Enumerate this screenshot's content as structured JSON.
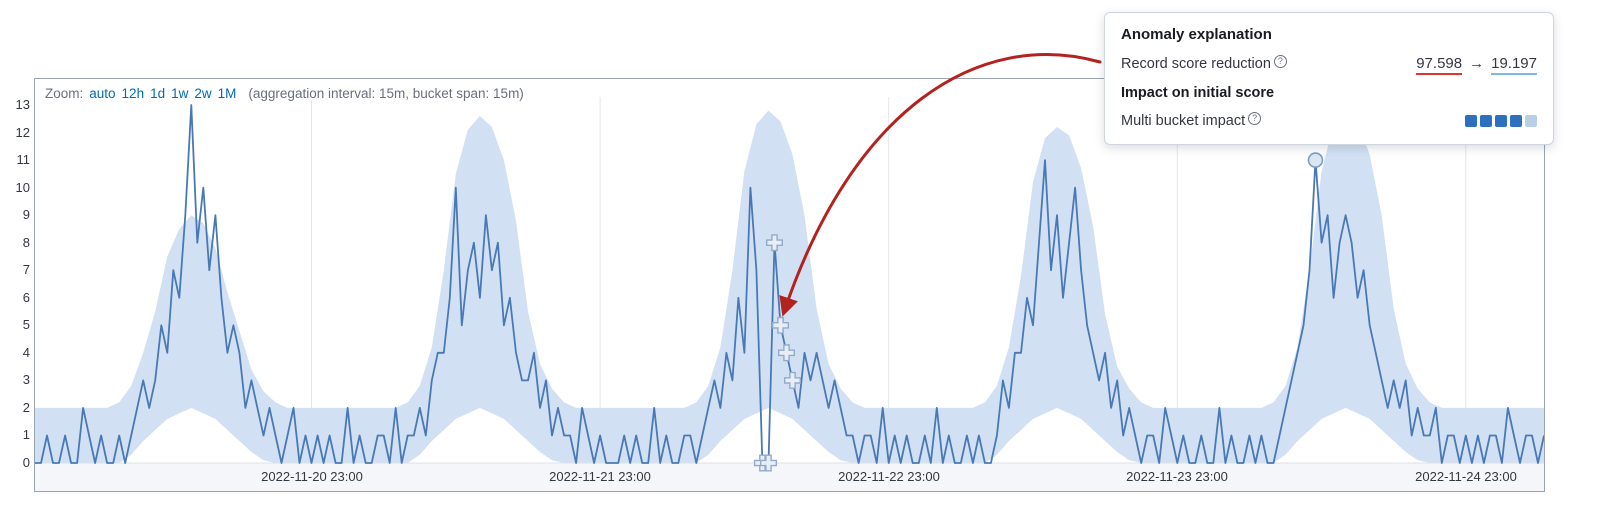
{
  "header": {
    "zoom_label": "Zoom:",
    "zoom_options": [
      "auto",
      "12h",
      "1d",
      "1w",
      "2w",
      "1M"
    ],
    "aggregation_note": "(aggregation interval: 15m, bucket span: 15m)"
  },
  "tooltip": {
    "title": "Anomaly explanation",
    "record_score_label": "Record score reduction",
    "record_score_from": "97.598",
    "record_score_arrow": "→",
    "record_score_to": "19.197",
    "help_glyph": "?",
    "impact_title": "Impact on initial score",
    "multi_bucket_label": "Multi bucket impact",
    "multi_bucket_impact_level": 4,
    "multi_bucket_squares_total": 5
  },
  "colors": {
    "link": "#006bb4",
    "muted_text": "#69707d",
    "panel_border": "#9aa5b3",
    "grid": "#e2e6ec",
    "band": "#d2e0f3",
    "line": "#4879b6",
    "marker_fill": "#e8eef7",
    "marker_stroke": "#92aaca",
    "circle_fill": "#dbe6f5",
    "circle_stroke": "#7e9cc0",
    "annotation_arrow": "#b2221f",
    "underline_from": "#e0352b",
    "underline_to": "#7cb9e8",
    "square_filled": "#2e6fc0",
    "square_light": "#b9cfe8"
  },
  "chart_data": {
    "type": "line",
    "title": "",
    "xlabel": "",
    "ylabel": "",
    "x_unit": "hours since 2022-11-20 00:00",
    "x_range": [
      0,
      125.5
    ],
    "ylim": [
      0,
      13
    ],
    "y_ticks": [
      0,
      1,
      2,
      3,
      4,
      5,
      6,
      7,
      8,
      9,
      10,
      11,
      12,
      13
    ],
    "x_ticks": [
      {
        "t": 23,
        "label": "2022-11-20 23:00"
      },
      {
        "t": 47,
        "label": "2022-11-21 23:00"
      },
      {
        "t": 71,
        "label": "2022-11-22 23:00"
      },
      {
        "t": 95,
        "label": "2022-11-23 23:00"
      },
      {
        "t": 119,
        "label": "2022-11-24 23:00"
      }
    ],
    "legend": "off",
    "grid": "vertical-only",
    "series": [
      {
        "name": "actual",
        "start": 0,
        "step": 0.5,
        "values": [
          0,
          0,
          1,
          0,
          0,
          1,
          0,
          0,
          2,
          1,
          0,
          1,
          0,
          0,
          1,
          0,
          1,
          2,
          3,
          2,
          3,
          5,
          4,
          7,
          6,
          9,
          13,
          8,
          10,
          7,
          9,
          6,
          4,
          5,
          4,
          2,
          3,
          2,
          1,
          2,
          1,
          0,
          1,
          2,
          0,
          1,
          0,
          1,
          0,
          1,
          0,
          0,
          2,
          0,
          1,
          0,
          0,
          1,
          1,
          0,
          2,
          0,
          1,
          1,
          2,
          1,
          3,
          4,
          4,
          6,
          10,
          5,
          7,
          8,
          6,
          9,
          7,
          8,
          5,
          6,
          4,
          3,
          3,
          4,
          2,
          3,
          1,
          2,
          1,
          1,
          0,
          2,
          1,
          0,
          1,
          0,
          0,
          0,
          1,
          0,
          1,
          0,
          0,
          2,
          0,
          1,
          0,
          0,
          1,
          1,
          0,
          1,
          2,
          3,
          2,
          4,
          3,
          6,
          4,
          10,
          7,
          0,
          0,
          8,
          5,
          4,
          3,
          2,
          4,
          3,
          4,
          3,
          2,
          3,
          2,
          1,
          1,
          0,
          1,
          1,
          0,
          2,
          0,
          1,
          0,
          1,
          0,
          0,
          1,
          0,
          2,
          0,
          1,
          0,
          0,
          1,
          0,
          1,
          0,
          0,
          1,
          3,
          2,
          4,
          4,
          6,
          5,
          8,
          11,
          7,
          9,
          6,
          8,
          10,
          7,
          5,
          4,
          3,
          4,
          2,
          3,
          1,
          2,
          1,
          0,
          1,
          1,
          0,
          2,
          1,
          0,
          1,
          0,
          0,
          1,
          0,
          0,
          2,
          0,
          1,
          0,
          0,
          1,
          0,
          1,
          0,
          0,
          1,
          2,
          3,
          4,
          5,
          7,
          11,
          8,
          9,
          6,
          8,
          9,
          8,
          6,
          7,
          5,
          4,
          3,
          2,
          3,
          2,
          3,
          1,
          2,
          1,
          1,
          2,
          0,
          1,
          1,
          0,
          1,
          0,
          1,
          0,
          1,
          1,
          0,
          2,
          1,
          0,
          1,
          1,
          0,
          1
        ]
      },
      {
        "name": "model_upper_bound",
        "start": 0,
        "step": 1,
        "values": [
          2,
          2,
          2,
          2,
          2,
          2,
          2,
          2.2,
          2.8,
          4,
          5.5,
          7.5,
          8.5,
          9,
          8.7,
          7.8,
          6.2,
          4.8,
          3.4,
          2.6,
          2.2,
          2,
          2,
          2,
          2,
          2,
          2,
          2,
          2,
          2,
          2,
          2.2,
          2.8,
          4.2,
          7,
          10.5,
          12.1,
          12.6,
          12.2,
          11,
          8.8,
          5.5,
          3.6,
          2.7,
          2.2,
          2,
          2,
          2,
          2,
          2,
          2,
          2,
          2,
          2,
          2,
          2.2,
          2.8,
          4.2,
          7,
          10.6,
          12.3,
          12.8,
          12.4,
          11.2,
          9,
          5.6,
          3.6,
          2.7,
          2.2,
          2,
          2,
          2,
          2,
          2,
          2,
          2,
          2,
          2,
          2,
          2.2,
          2.8,
          4.2,
          6.8,
          10.2,
          11.8,
          12.2,
          11.9,
          10.7,
          8.6,
          5.4,
          3.5,
          2.7,
          2.2,
          2,
          2,
          2,
          2,
          2,
          2,
          2,
          2,
          2,
          2,
          2.2,
          2.8,
          4.2,
          7,
          10.6,
          12.3,
          12.8,
          12.4,
          11.2,
          9,
          5.6,
          3.6,
          2.7,
          2.2,
          2,
          2,
          2,
          2,
          2,
          2,
          2,
          2,
          2
        ]
      },
      {
        "name": "model_lower_bound",
        "start": 0,
        "step": 1,
        "values": [
          0,
          0,
          0,
          0,
          0,
          0,
          0,
          0,
          0.3,
          0.8,
          1.2,
          1.6,
          1.8,
          2,
          1.8,
          1.6,
          1.2,
          0.8,
          0.4,
          0.1,
          0,
          0,
          0,
          0,
          0,
          0,
          0,
          0,
          0,
          0,
          0,
          0,
          0.3,
          0.8,
          1.2,
          1.6,
          1.8,
          2,
          1.8,
          1.6,
          1.2,
          0.8,
          0.4,
          0.1,
          0,
          0,
          0,
          0,
          0,
          0,
          0,
          0,
          0,
          0,
          0,
          0,
          0.3,
          0.8,
          1.2,
          1.6,
          1.8,
          2,
          1.8,
          1.6,
          1.2,
          0.8,
          0.4,
          0.1,
          0,
          0,
          0,
          0,
          0,
          0,
          0,
          0,
          0,
          0,
          0,
          0,
          0.3,
          0.8,
          1.2,
          1.6,
          1.8,
          2,
          1.8,
          1.6,
          1.2,
          0.8,
          0.4,
          0.1,
          0,
          0,
          0,
          0,
          0,
          0,
          0,
          0,
          0,
          0,
          0,
          0,
          0.3,
          0.8,
          1.2,
          1.6,
          1.8,
          2,
          1.8,
          1.6,
          1.2,
          0.8,
          0.4,
          0.1,
          0,
          0,
          0,
          0,
          0,
          0,
          0,
          0,
          0,
          0
        ]
      }
    ],
    "anomalies": {
      "multi_bucket_markers": [
        {
          "t": 60.5,
          "v": 0
        },
        {
          "t": 61,
          "v": 0
        },
        {
          "t": 61.5,
          "v": 8
        },
        {
          "t": 62,
          "v": 5
        },
        {
          "t": 62.5,
          "v": 4
        },
        {
          "t": 63,
          "v": 3
        }
      ],
      "circle_marker": {
        "t": 106.5,
        "v": 11
      }
    }
  }
}
